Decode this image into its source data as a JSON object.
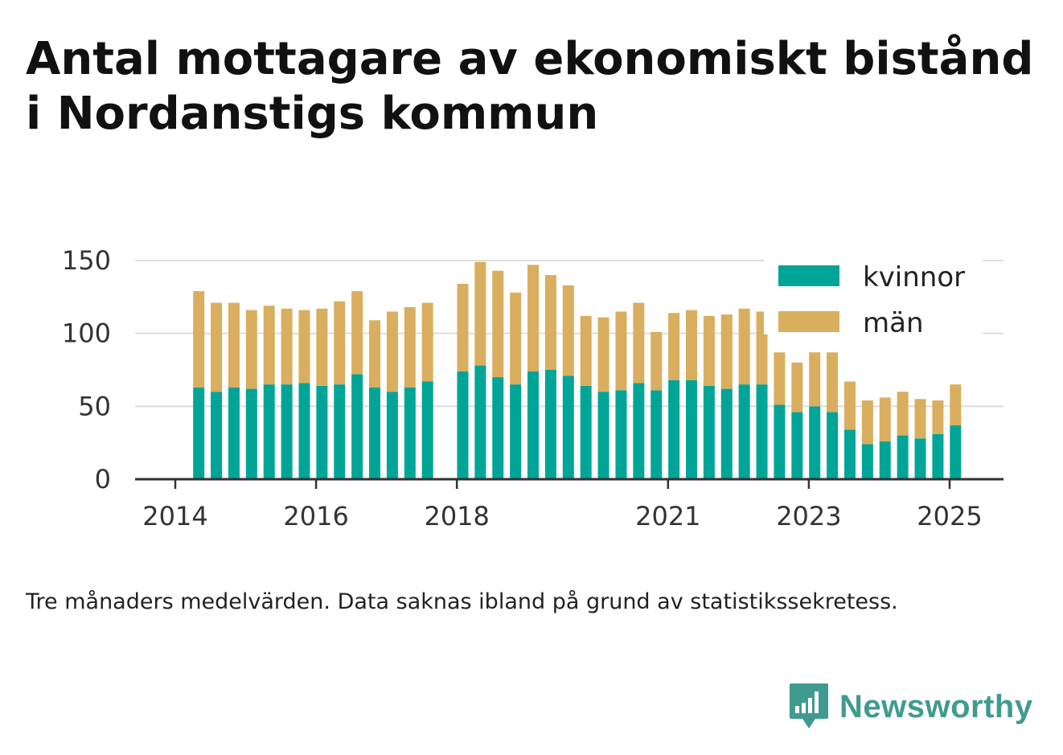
{
  "title_line1": "Antal mottagare av ekonomiskt bistånd",
  "title_line2": "i Nordanstigs kommun",
  "footnote": "Tre månaders medelvärden. Data saknas ibland på grund av statistikssekretess.",
  "brand": "Newsworthy",
  "colors": {
    "kvinnor": "#00a597",
    "man": "#d9ae5e",
    "grid": "#dddddd",
    "axis": "#333333",
    "brand": "#3f9b8f"
  },
  "chart_data": {
    "type": "bar",
    "stacked": true,
    "title": "Antal mottagare av ekonomiskt bistånd i Nordanstigs kommun",
    "xlabel": "",
    "ylabel": "",
    "ylim": [
      0,
      150
    ],
    "yticks": [
      0,
      50,
      100,
      150
    ],
    "xticks": [
      {
        "label": "2014",
        "date": "2014-01"
      },
      {
        "label": "2016",
        "date": "2016-01"
      },
      {
        "label": "2018",
        "date": "2018-01"
      },
      {
        "label": "2021",
        "date": "2021-01"
      },
      {
        "label": "2023",
        "date": "2023-01"
      },
      {
        "label": "2025",
        "date": "2025-01"
      }
    ],
    "grid": true,
    "legend_position": "top-right",
    "x": [
      "2014-05",
      "2014-08",
      "2014-11",
      "2015-02",
      "2015-05",
      "2015-08",
      "2015-11",
      "2016-02",
      "2016-05",
      "2016-08",
      "2016-11",
      "2017-02",
      "2017-05",
      "2017-08",
      "2018-02",
      "2018-05",
      "2018-08",
      "2018-11",
      "2019-02",
      "2019-05",
      "2019-08",
      "2019-11",
      "2020-02",
      "2020-05",
      "2020-08",
      "2020-11",
      "2021-02",
      "2021-05",
      "2021-08",
      "2021-11",
      "2022-02",
      "2022-05",
      "2022-08",
      "2022-11",
      "2023-02",
      "2023-05",
      "2023-08",
      "2023-11",
      "2024-02",
      "2024-05",
      "2024-08",
      "2024-11",
      "2025-02"
    ],
    "series": [
      {
        "name": "kvinnor",
        "values": [
          63,
          60,
          63,
          62,
          65,
          65,
          66,
          64,
          65,
          72,
          63,
          60,
          63,
          67,
          74,
          78,
          70,
          65,
          74,
          75,
          71,
          64,
          60,
          61,
          66,
          61,
          68,
          68,
          64,
          62,
          65,
          65,
          51,
          46,
          50,
          46,
          34,
          24,
          26,
          30,
          28,
          31,
          37
        ]
      },
      {
        "name": "män",
        "values": [
          66,
          61,
          58,
          54,
          54,
          52,
          50,
          53,
          57,
          57,
          46,
          55,
          55,
          54,
          60,
          71,
          73,
          63,
          73,
          65,
          62,
          48,
          51,
          54,
          55,
          40,
          46,
          48,
          48,
          51,
          52,
          50,
          36,
          34,
          37,
          41,
          33,
          30,
          30,
          30,
          27,
          23,
          28
        ]
      }
    ]
  }
}
